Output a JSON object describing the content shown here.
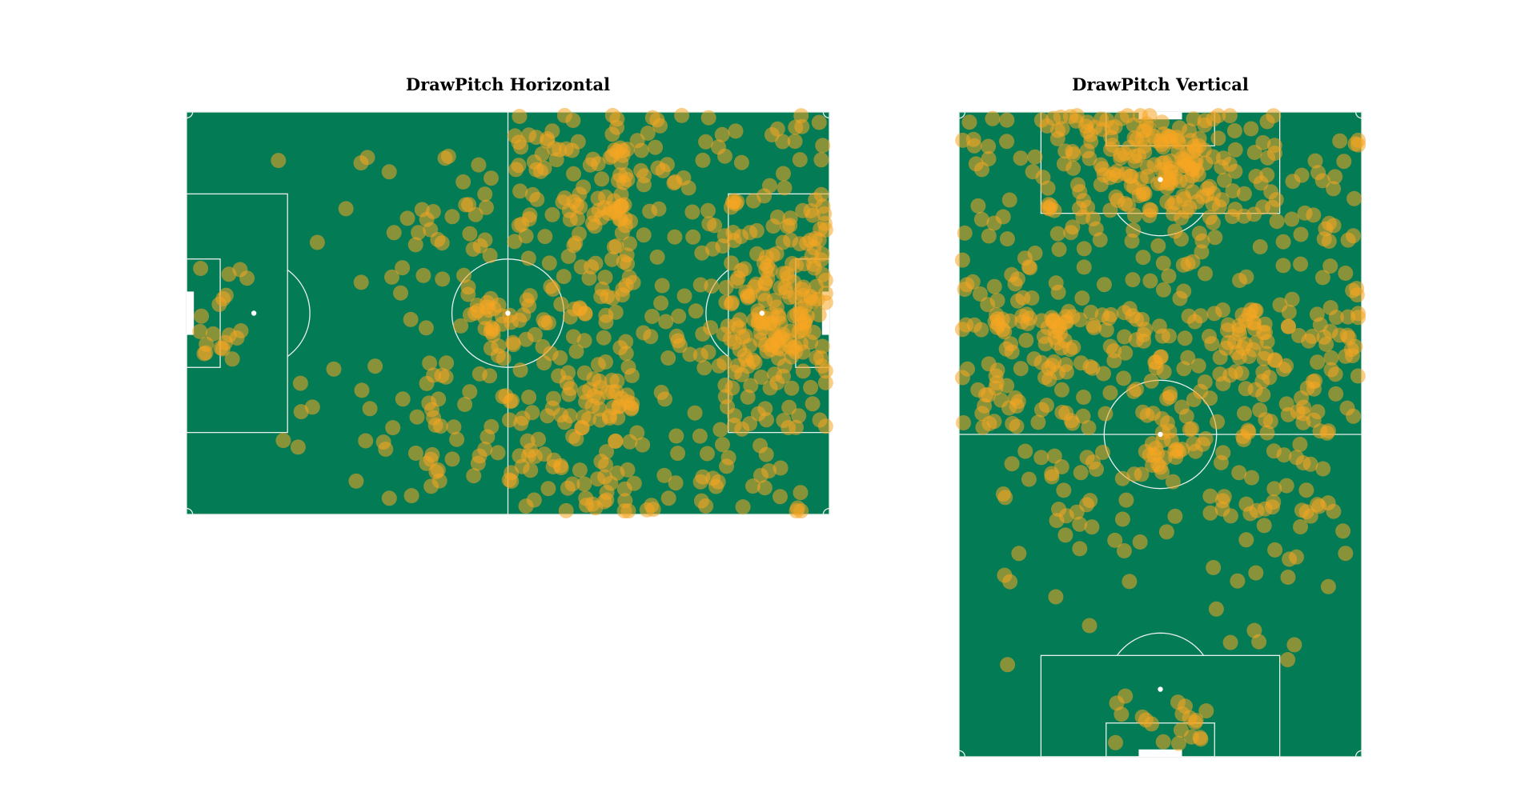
{
  "colors": {
    "pitch": "#037b55",
    "lines": "#e8f0ec",
    "marker": "#f5a623",
    "marker_opacity": 0.55,
    "background": "#ffffff"
  },
  "chart_data": [
    {
      "type": "scatter",
      "title": "DrawPitch Horizontal",
      "orientation": "horizontal",
      "pitch_length": 105,
      "pitch_width": 68,
      "xlim": [
        0,
        105
      ],
      "ylim": [
        0,
        68
      ],
      "legend": "none",
      "grid": false
    },
    {
      "type": "scatter",
      "title": "DrawPitch Vertical",
      "orientation": "vertical",
      "pitch_length": 105,
      "pitch_width": 68,
      "xlim": [
        0,
        68
      ],
      "ylim": [
        0,
        105
      ],
      "legend": "none",
      "grid": false
    }
  ]
}
